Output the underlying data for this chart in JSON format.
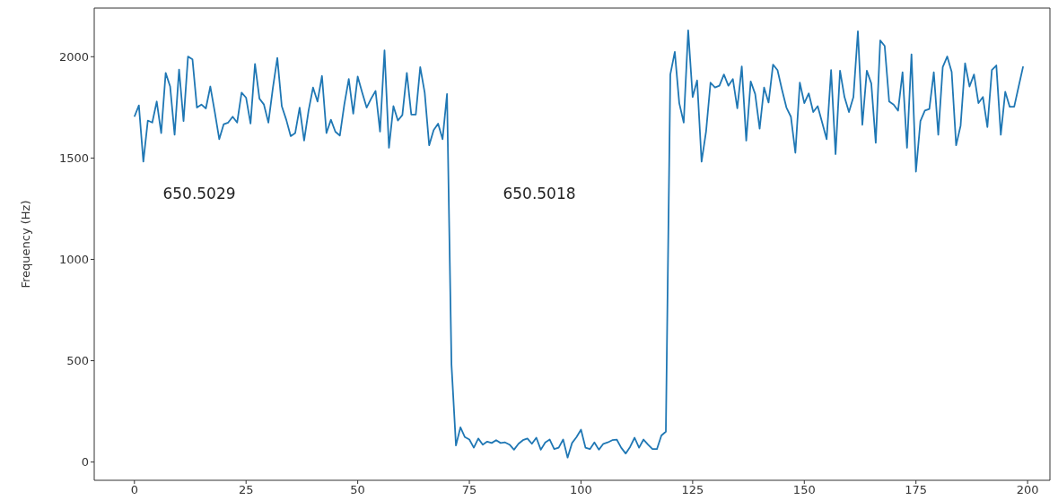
{
  "chart_data": {
    "type": "line",
    "ylabel": "Frequency (Hz)",
    "xlim": [
      -9,
      205
    ],
    "xticks": [
      0,
      25,
      50,
      75,
      100,
      125,
      150,
      175,
      200
    ],
    "ylim": [
      -90,
      2240
    ],
    "yticks": [
      0,
      500,
      1000,
      1500,
      2000
    ],
    "marker": "none",
    "line_style": "solid",
    "annotations": [
      "650.5029",
      "650.5018"
    ],
    "series": [
      {
        "color": "#1f77b4",
        "x": [
          0,
          1,
          2,
          3,
          4,
          5,
          6,
          7,
          8,
          9,
          10,
          11,
          12,
          13,
          14,
          15,
          16,
          17,
          18,
          19,
          20,
          21,
          22,
          23,
          24,
          25,
          26,
          27,
          28,
          29,
          30,
          31,
          32,
          33,
          34,
          35,
          36,
          37,
          38,
          39,
          40,
          41,
          42,
          43,
          44,
          45,
          46,
          47,
          48,
          49,
          50,
          51,
          52,
          53,
          54,
          55,
          56,
          57,
          58,
          59,
          60,
          61,
          62,
          63,
          64,
          65,
          66,
          67,
          68,
          69,
          70,
          71,
          72,
          73,
          74,
          75,
          76,
          77,
          78,
          79,
          80,
          81,
          82,
          83,
          84,
          85,
          86,
          87,
          88,
          89,
          90,
          91,
          92,
          93,
          94,
          95,
          96,
          97,
          98,
          99,
          100,
          101,
          102,
          103,
          104,
          105,
          106,
          107,
          108,
          109,
          110,
          111,
          112,
          113,
          114,
          115,
          116,
          117,
          118,
          119,
          120,
          121,
          122,
          123,
          124,
          125,
          126,
          127,
          128,
          129,
          130,
          131,
          132,
          133,
          134,
          135,
          136,
          137,
          138,
          139,
          140,
          141,
          142,
          143,
          144,
          145,
          146,
          147,
          148,
          149,
          150,
          151,
          152,
          153,
          154,
          155,
          156,
          157,
          158,
          159,
          160,
          161,
          162,
          163,
          164,
          165,
          166,
          167,
          168,
          169,
          170,
          171,
          172,
          173,
          174,
          175,
          176,
          177,
          178,
          179,
          180,
          181,
          182,
          183,
          184,
          185,
          186,
          187,
          188,
          189,
          190,
          191,
          192,
          193,
          194,
          195,
          196,
          197,
          198,
          199
        ],
        "values": [
          1704,
          1760,
          1482,
          1685,
          1675,
          1779,
          1623,
          1920,
          1853,
          1615,
          1937,
          1682,
          2001,
          1987,
          1749,
          1764,
          1745,
          1853,
          1727,
          1593,
          1667,
          1675,
          1704,
          1675,
          1823,
          1798,
          1670,
          1964,
          1793,
          1764,
          1675,
          1845,
          1994,
          1756,
          1689,
          1608,
          1623,
          1749,
          1586,
          1734,
          1848,
          1779,
          1905,
          1623,
          1689,
          1630,
          1611,
          1764,
          1890,
          1719,
          1902,
          1823,
          1749,
          1793,
          1831,
          1630,
          2031,
          1551,
          1756,
          1685,
          1712,
          1920,
          1714,
          1714,
          1949,
          1823,
          1563,
          1638,
          1670,
          1593,
          1816,
          480,
          82,
          171,
          123,
          111,
          71,
          116,
          86,
          101,
          94,
          108,
          94,
          97,
          86,
          61,
          90,
          108,
          116,
          90,
          120,
          61,
          97,
          111,
          64,
          71,
          111,
          22,
          94,
          123,
          160,
          71,
          64,
          97,
          61,
          90,
          97,
          108,
          111,
          71,
          42,
          75,
          120,
          71,
          111,
          86,
          64,
          64,
          131,
          150,
          1912,
          2024,
          1771,
          1675,
          2130,
          1801,
          1883,
          1482,
          1630,
          1872,
          1848,
          1857,
          1912,
          1857,
          1890,
          1745,
          1952,
          1586,
          1878,
          1816,
          1645,
          1848,
          1774,
          1961,
          1934,
          1838,
          1749,
          1704,
          1526,
          1872,
          1771,
          1819,
          1727,
          1756,
          1675,
          1593,
          1934,
          1519,
          1931,
          1801,
          1727,
          1801,
          2125,
          1664,
          1931,
          1868,
          1575,
          2080,
          2053,
          1779,
          1764,
          1734,
          1923,
          1551,
          2012,
          1433,
          1682,
          1734,
          1742,
          1923,
          1615,
          1949,
          2001,
          1925,
          1563,
          1660,
          1967,
          1853,
          1912,
          1771,
          1801,
          1653,
          1934,
          1957,
          1615,
          1827,
          1753,
          1753,
          1853,
          1952
        ]
      }
    ]
  }
}
